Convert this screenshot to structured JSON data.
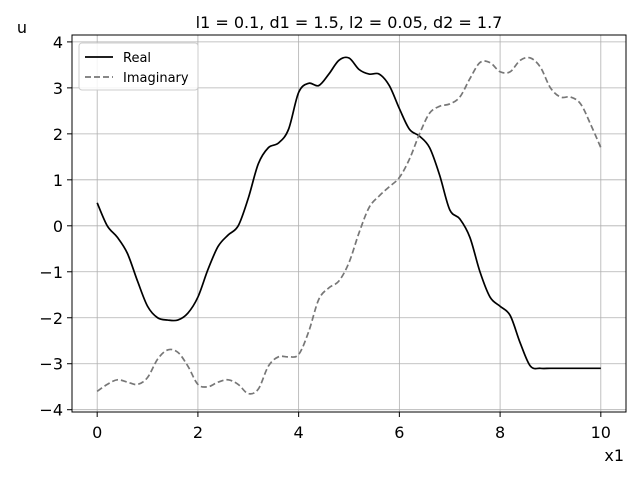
{
  "chart_data": {
    "type": "line",
    "title": "l1 = 0.1, d1 = 1.5, l2 = 0.05, d2 = 1.7",
    "xlabel": "x1",
    "ylabel": "u",
    "xlim": [
      -0.5,
      10.5
    ],
    "ylim": [
      -4.05,
      4.15
    ],
    "xticks": [
      0,
      2,
      4,
      6,
      8,
      10
    ],
    "xtick_labels": [
      "0",
      "2",
      "4",
      "6",
      "8",
      "10"
    ],
    "yticks": [
      -4,
      -3,
      -2,
      -1,
      0,
      1,
      2,
      3,
      4
    ],
    "ytick_labels": [
      "−4",
      "−3",
      "−2",
      "−1",
      "0",
      "1",
      "2",
      "3",
      "4"
    ],
    "grid": true,
    "legend_position": "top-left",
    "series": [
      {
        "name": "Real",
        "color": "#000000",
        "style": "solid",
        "x": [
          0,
          0.2,
          0.4,
          0.6,
          0.8,
          1.0,
          1.2,
          1.4,
          1.6,
          1.8,
          2.0,
          2.2,
          2.4,
          2.6,
          2.8,
          3.0,
          3.2,
          3.4,
          3.6,
          3.8,
          4.0,
          4.2,
          4.4,
          4.6,
          4.8,
          5.0,
          5.2,
          5.4,
          5.6,
          5.8,
          6.0,
          6.2,
          6.4,
          6.6,
          6.8,
          7.0,
          7.2,
          7.4,
          7.6,
          7.8,
          8.0,
          8.2,
          8.4,
          8.6,
          8.8,
          9.0,
          9.2,
          9.4,
          9.6,
          9.8,
          10.0
        ],
        "y": [
          0.5,
          0.0,
          -0.25,
          -0.6,
          -1.2,
          -1.75,
          -2.0,
          -2.05,
          -2.05,
          -1.9,
          -1.55,
          -0.95,
          -0.45,
          -0.2,
          0.0,
          0.6,
          1.35,
          1.7,
          1.8,
          2.1,
          2.9,
          3.1,
          3.05,
          3.3,
          3.6,
          3.65,
          3.4,
          3.3,
          3.3,
          3.05,
          2.55,
          2.1,
          1.95,
          1.7,
          1.1,
          0.35,
          0.15,
          -0.25,
          -1.0,
          -1.55,
          -1.75,
          -1.95,
          -2.55,
          -3.05,
          -3.1,
          -3.1,
          -3.1,
          -3.1,
          -3.1,
          -3.1,
          -3.1
        ],
        "y_note_ignore": false
      },
      {
        "name": "Imaginary",
        "color": "#777777",
        "style": "dashed",
        "x": [
          0,
          0.2,
          0.4,
          0.6,
          0.8,
          1.0,
          1.2,
          1.4,
          1.6,
          1.8,
          2.0,
          2.2,
          2.4,
          2.6,
          2.8,
          3.0,
          3.2,
          3.4,
          3.6,
          3.8,
          4.0,
          4.2,
          4.4,
          4.6,
          4.8,
          5.0,
          5.2,
          5.4,
          5.6,
          5.8,
          6.0,
          6.2,
          6.4,
          6.6,
          6.8,
          7.0,
          7.2,
          7.4,
          7.6,
          7.8,
          8.0,
          8.2,
          8.4,
          8.6,
          8.8,
          9.0,
          9.2,
          9.4,
          9.6,
          9.8,
          10.0
        ],
        "y": [
          -3.6,
          -3.45,
          -3.35,
          -3.4,
          -3.45,
          -3.3,
          -2.9,
          -2.7,
          -2.75,
          -3.05,
          -3.45,
          -3.5,
          -3.4,
          -3.35,
          -3.45,
          -3.65,
          -3.55,
          -3.05,
          -2.85,
          -2.85,
          -2.8,
          -2.3,
          -1.6,
          -1.35,
          -1.2,
          -0.8,
          -0.15,
          0.4,
          0.65,
          0.85,
          1.05,
          1.45,
          2.0,
          2.45,
          2.6,
          2.65,
          2.8,
          3.2,
          3.55,
          3.55,
          3.35,
          3.35,
          3.6,
          3.65,
          3.45,
          3.0,
          2.8,
          2.8,
          2.65,
          2.2,
          1.7
        ]
      }
    ]
  }
}
